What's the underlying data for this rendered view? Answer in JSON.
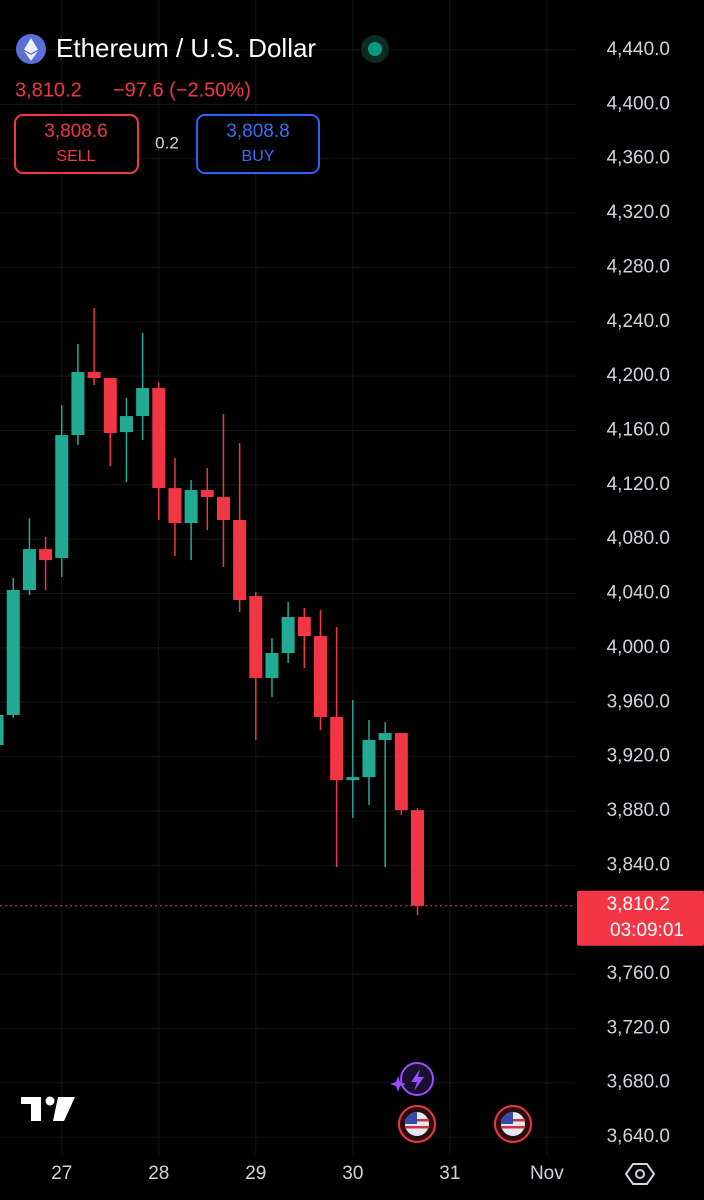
{
  "header": {
    "title": "Ethereum / U.S. Dollar",
    "change": "−97.6 (−2.50%)",
    "sell": {
      "price": "3,808.6",
      "label": "SELL"
    },
    "spread": "0.2",
    "buy": {
      "price": "3,808.8",
      "label": "BUY"
    }
  },
  "chart_data": {
    "type": "candlestick",
    "categories": [
      null,
      null,
      null,
      null,
      "27",
      null,
      null,
      null,
      null,
      null,
      "28",
      null,
      null,
      null,
      null,
      null,
      "29",
      null,
      null,
      null,
      null,
      null,
      "30",
      null,
      null,
      null,
      null,
      null,
      "31",
      null,
      null,
      null,
      null,
      null,
      "Nov",
      null
    ],
    "open": [
      3928.5,
      3950.6,
      4042.6,
      4072.7,
      4066.1,
      4156.6,
      4203.0,
      4198.6,
      4158.8,
      4170.6,
      4191.2,
      4117.6,
      4091.9,
      4116.2,
      4111.0,
      4094.1,
      4038.1,
      3977.8,
      3996.2,
      4022.7,
      4008.7,
      3949.1,
      3902.7,
      3904.9,
      3932.2,
      3937.3,
      3880.6,
      null,
      null,
      null,
      null,
      null,
      null,
      null,
      null,
      null
    ],
    "high": [
      3961.6,
      4051.4,
      4095.5,
      4081.6,
      4178.7,
      4223.6,
      4250.1,
      4198.6,
      4183.9,
      4231.7,
      4195.6,
      4139.7,
      4123.5,
      4132.3,
      4172.1,
      4150.7,
      4041.1,
      4007.2,
      4033.7,
      4029.3,
      4027.8,
      4015.3,
      3961.6,
      3946.9,
      3945.4,
      3937.3,
      3882.1,
      null,
      null,
      null,
      null,
      null,
      null,
      null,
      null,
      null
    ],
    "low": [
      3920.0,
      3948.4,
      4038.9,
      4042.6,
      4052.1,
      4149.3,
      4193.4,
      4133.8,
      4122.0,
      4153.0,
      4094.1,
      4067.6,
      4064.6,
      4086.7,
      4059.5,
      4026.4,
      3932.2,
      3963.8,
      3988.8,
      3985.2,
      3939.5,
      3838.7,
      3874.8,
      3884.3,
      3838.7,
      3877.0,
      3803.4,
      null,
      null,
      null,
      null,
      null,
      null,
      null,
      null,
      null
    ],
    "close": [
      3950.6,
      4042.6,
      4072.7,
      4064.6,
      4156.6,
      4203.0,
      4198.6,
      4158.1,
      4170.6,
      4191.2,
      4117.6,
      4091.9,
      4116.2,
      4111.0,
      4094.1,
      4035.2,
      3977.8,
      3996.2,
      4022.7,
      4008.7,
      3949.1,
      3902.7,
      3904.9,
      3932.2,
      3937.3,
      3880.6,
      3810.2,
      null,
      null,
      null,
      null,
      null,
      null,
      null,
      null,
      null
    ],
    "up_color": "#22ab94",
    "down_color": "#f23645",
    "last_price": {
      "value": 3810.2,
      "label": "3,810.2"
    },
    "countdown": "03:09:01",
    "ylim": [
      3626.8,
      4476.8
    ],
    "yticks": [
      {
        "value": 3640,
        "label": "3,640.0"
      },
      {
        "value": 3680,
        "label": "3,680.0"
      },
      {
        "value": 3720,
        "label": "3,720.0"
      },
      {
        "value": 3760,
        "label": "3,760.0"
      },
      {
        "value": 3840,
        "label": "3,840.0"
      },
      {
        "value": 3880,
        "label": "3,880.0"
      },
      {
        "value": 3920,
        "label": "3,920.0"
      },
      {
        "value": 3960,
        "label": "3,960.0"
      },
      {
        "value": 4000,
        "label": "4,000.0"
      },
      {
        "value": 4040,
        "label": "4,040.0"
      },
      {
        "value": 4080,
        "label": "4,080.0"
      },
      {
        "value": 4120,
        "label": "4,120.0"
      },
      {
        "value": 4160,
        "label": "4,160.0"
      },
      {
        "value": 4200,
        "label": "4,200.0"
      },
      {
        "value": 4240,
        "label": "4,240.0"
      },
      {
        "value": 4280,
        "label": "4,280.0"
      },
      {
        "value": 4320,
        "label": "4,320.0"
      },
      {
        "value": 4360,
        "label": "4,360.0"
      },
      {
        "value": 4400,
        "label": "4,400.0"
      },
      {
        "value": 4440,
        "label": "4,440.0"
      }
    ],
    "grid": true
  }
}
